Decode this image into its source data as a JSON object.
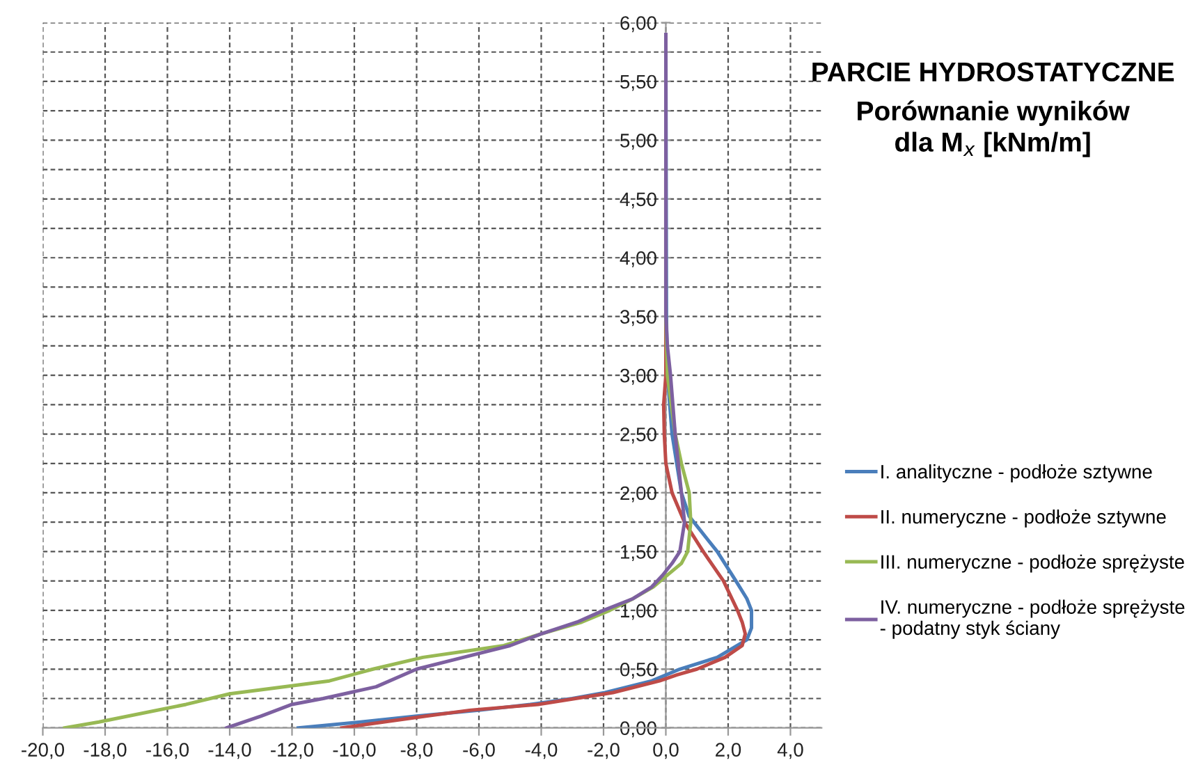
{
  "chart_data": {
    "type": "line",
    "title": "PARCIE HYDROSTATYCZNE",
    "subtitle": "Porównanie wyników\ndla M$_{x}$ [kNm/m]",
    "xlim": [
      -20,
      5
    ],
    "xticks": [
      {
        "value": -20,
        "label": "-20,0"
      },
      {
        "value": -18,
        "label": "-18,0"
      },
      {
        "value": -16,
        "label": "-16,0"
      },
      {
        "value": -14,
        "label": "-14,0"
      },
      {
        "value": -12,
        "label": "-12,0"
      },
      {
        "value": -10,
        "label": "-10,0"
      },
      {
        "value": -8,
        "label": "-8,0"
      },
      {
        "value": -6,
        "label": "-6,0"
      },
      {
        "value": -4,
        "label": "-4,0"
      },
      {
        "value": -2,
        "label": "-2,0"
      },
      {
        "value": 0,
        "label": "0,0"
      },
      {
        "value": 2,
        "label": "2,0"
      },
      {
        "value": 4,
        "label": "4,0"
      }
    ],
    "ylim": [
      0,
      6
    ],
    "yticks": [
      {
        "value": 0,
        "label": "0,00"
      },
      {
        "value": 0.25,
        "label": null
      },
      {
        "value": 0.5,
        "label": "0,50"
      },
      {
        "value": 0.75,
        "label": null
      },
      {
        "value": 1,
        "label": "1,00"
      },
      {
        "value": 1.25,
        "label": null
      },
      {
        "value": 1.5,
        "label": "1,50"
      },
      {
        "value": 1.75,
        "label": null
      },
      {
        "value": 2,
        "label": "2,00"
      },
      {
        "value": 2.25,
        "label": null
      },
      {
        "value": 2.5,
        "label": "2,50"
      },
      {
        "value": 2.75,
        "label": null
      },
      {
        "value": 3,
        "label": "3,00"
      },
      {
        "value": 3.25,
        "label": null
      },
      {
        "value": 3.5,
        "label": "3,50"
      },
      {
        "value": 3.75,
        "label": null
      },
      {
        "value": 4,
        "label": "4,00"
      },
      {
        "value": 4.25,
        "label": null
      },
      {
        "value": 4.5,
        "label": "4,50"
      },
      {
        "value": 4.75,
        "label": null
      },
      {
        "value": 5,
        "label": "5,00"
      },
      {
        "value": 5.25,
        "label": null
      },
      {
        "value": 5.5,
        "label": "5,50"
      },
      {
        "value": 5.75,
        "label": null
      },
      {
        "value": 6,
        "label": "6,00"
      }
    ],
    "grid": true,
    "legend": "right",
    "marker": "none",
    "line_style": "solid",
    "series": [
      {
        "name": "I. analityczne - podłoże sztywne",
        "color": "#4a7ebb",
        "x": [
          -11.8,
          -9.8,
          -8.0,
          -6.0,
          -4.35,
          -3.0,
          -1.95,
          -0.45,
          0.45,
          1.65,
          2.6,
          2.75,
          2.75,
          2.6,
          2.25,
          1.65,
          1.05,
          0.75,
          0.5,
          0.2,
          0.05,
          0.02,
          0.0
        ],
        "values": [
          0,
          0.05,
          0.1,
          0.15,
          0.2,
          0.25,
          0.3,
          0.4,
          0.5,
          0.6,
          0.75,
          0.85,
          1.0,
          1.1,
          1.25,
          1.5,
          1.7,
          1.8,
          2.0,
          2.5,
          3.0,
          3.5,
          5.9
        ]
      },
      {
        "name": "II. numeryczne - podłoże sztywne",
        "color": "#be4b48",
        "x": [
          -10.4,
          -7.7,
          -6.3,
          -4.1,
          -1.7,
          -0.2,
          0.35,
          1.0,
          1.9,
          2.45,
          2.55,
          2.45,
          2.3,
          1.85,
          1.2,
          0.6,
          0.2,
          0.0,
          -0.05,
          -0.07,
          0.0,
          0.0
        ],
        "values": [
          0,
          0.1,
          0.15,
          0.2,
          0.3,
          0.4,
          0.45,
          0.5,
          0.6,
          0.7,
          0.8,
          0.9,
          1.0,
          1.25,
          1.5,
          1.75,
          2.0,
          2.25,
          2.5,
          2.75,
          3.0,
          5.9
        ]
      },
      {
        "name": "III. numeryczne - podłoże sprężyste",
        "color": "#98b954",
        "x": [
          -19.3,
          -18.2,
          -15.4,
          -14.0,
          -10.8,
          -9.4,
          -7.8,
          -5.2,
          -4.0,
          -2.7,
          -1.8,
          -1.05,
          -0.4,
          0.05,
          0.5,
          0.7,
          0.8,
          0.75,
          0.5,
          0.3,
          0.05,
          0.0,
          0.0
        ],
        "values": [
          0,
          0.05,
          0.2,
          0.29,
          0.4,
          0.5,
          0.6,
          0.7,
          0.8,
          0.9,
          1.0,
          1.1,
          1.2,
          1.3,
          1.4,
          1.5,
          1.75,
          2.0,
          2.25,
          2.5,
          3.0,
          3.5,
          5.9
        ]
      },
      {
        "name": "IV. numeryczne - podłoże sprężyste\n- podatny styk ściany",
        "color": "#7d60a0",
        "x": [
          -14.1,
          -13.0,
          -12.0,
          -11.0,
          -9.3,
          -8.0,
          -6.5,
          -5.0,
          -4.0,
          -2.85,
          -2.0,
          -1.05,
          -0.45,
          -0.1,
          0.2,
          0.45,
          0.6,
          0.5,
          0.3,
          0.15,
          0.05,
          0.0,
          0.0
        ],
        "values": [
          0,
          0.1,
          0.2,
          0.25,
          0.35,
          0.5,
          0.6,
          0.7,
          0.8,
          0.9,
          1.0,
          1.1,
          1.2,
          1.3,
          1.4,
          1.5,
          1.75,
          2.0,
          2.5,
          3.0,
          3.25,
          3.5,
          5.9
        ]
      }
    ]
  }
}
